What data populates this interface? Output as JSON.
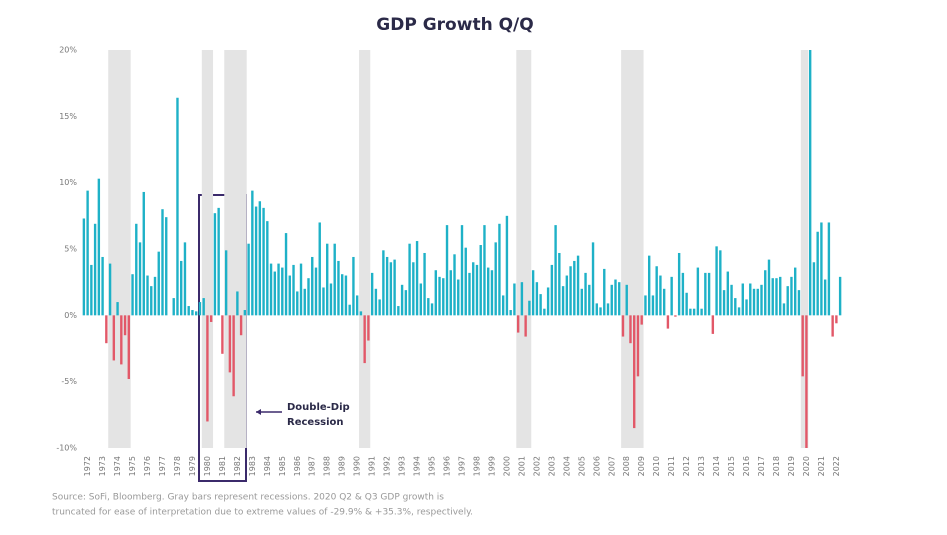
{
  "chart_data": {
    "type": "bar",
    "title": "GDP Growth Q/Q",
    "categories": [
      "1972",
      null,
      null,
      null,
      "1973",
      null,
      null,
      null,
      "1974",
      null,
      null,
      null,
      "1975",
      null,
      null,
      null,
      "1976",
      null,
      null,
      null,
      "1977",
      null,
      null,
      null,
      "1978",
      null,
      null,
      null,
      "1979",
      null,
      null,
      null,
      "1980",
      null,
      null,
      null,
      "1981",
      null,
      null,
      null,
      "1982",
      null,
      null,
      null,
      "1983",
      null,
      null,
      null,
      "1984",
      null,
      null,
      null,
      "1985",
      null,
      null,
      null,
      "1986",
      null,
      null,
      null,
      "1987",
      null,
      null,
      null,
      "1988",
      null,
      null,
      null,
      "1989",
      null,
      null,
      null,
      "1990",
      null,
      null,
      null,
      "1991",
      null,
      null,
      null,
      "1992",
      null,
      null,
      null,
      "1993",
      null,
      null,
      null,
      "1994",
      null,
      null,
      null,
      "1995",
      null,
      null,
      null,
      "1996",
      null,
      null,
      null,
      "1997",
      null,
      null,
      null,
      "1998",
      null,
      null,
      null,
      "1999",
      null,
      null,
      null,
      "2000",
      null,
      null,
      null,
      "2001",
      null,
      null,
      null,
      "2002",
      null,
      null,
      null,
      "2003",
      null,
      null,
      null,
      "2004",
      null,
      null,
      null,
      "2005",
      null,
      null,
      null,
      "2006",
      null,
      null,
      null,
      "2007",
      null,
      null,
      null,
      "2008",
      null,
      null,
      null,
      "2009",
      null,
      null,
      null,
      "2010",
      null,
      null,
      null,
      "2011",
      null,
      null,
      null,
      "2012",
      null,
      null,
      null,
      "2013",
      null,
      null,
      null,
      "2014",
      null,
      null,
      null,
      "2015",
      null,
      null,
      null,
      "2016",
      null,
      null,
      null,
      "2017",
      null,
      null,
      null,
      "2018",
      null,
      null,
      null,
      "2019",
      null,
      null,
      null,
      "2020",
      null,
      null,
      null,
      "2021",
      null,
      null,
      null,
      "2022",
      null,
      null
    ],
    "values": [
      7.3,
      9.4,
      3.8,
      6.9,
      10.3,
      4.4,
      -2.1,
      3.9,
      -3.4,
      1.0,
      -3.7,
      -1.5,
      -4.8,
      3.1,
      6.9,
      5.5,
      9.3,
      3.0,
      2.2,
      2.9,
      4.8,
      8.0,
      7.4,
      0.0,
      1.3,
      16.4,
      4.1,
      5.5,
      0.7,
      0.4,
      0.3,
      1.0,
      1.3,
      -8.0,
      -0.5,
      7.7,
      8.1,
      -2.9,
      4.9,
      -4.3,
      -6.1,
      1.8,
      -1.5,
      0.4,
      5.4,
      9.4,
      8.2,
      8.6,
      8.1,
      7.1,
      3.9,
      3.3,
      3.9,
      3.6,
      6.2,
      3.0,
      3.8,
      1.8,
      3.9,
      2.0,
      2.8,
      4.4,
      3.6,
      7.0,
      2.1,
      5.4,
      2.4,
      5.4,
      4.1,
      3.1,
      3.0,
      0.8,
      4.4,
      1.5,
      0.3,
      -3.6,
      -1.9,
      3.2,
      2.0,
      1.2,
      4.9,
      4.4,
      4.0,
      4.2,
      0.7,
      2.3,
      1.9,
      5.4,
      4.0,
      5.6,
      2.4,
      4.7,
      1.3,
      0.9,
      3.4,
      2.9,
      2.8,
      6.8,
      3.4,
      4.6,
      2.7,
      6.8,
      5.1,
      3.2,
      4.0,
      3.8,
      5.3,
      6.8,
      3.6,
      3.4,
      5.5,
      6.9,
      1.5,
      7.5,
      0.4,
      2.4,
      -1.3,
      2.5,
      -1.6,
      1.1,
      3.4,
      2.5,
      1.6,
      0.5,
      2.1,
      3.8,
      6.8,
      4.7,
      2.2,
      3.0,
      3.7,
      4.1,
      4.5,
      2.0,
      3.2,
      2.3,
      5.5,
      0.9,
      0.6,
      3.5,
      0.9,
      2.3,
      2.7,
      2.5,
      -1.6,
      2.3,
      -2.1,
      -8.5,
      -4.6,
      -0.7,
      1.5,
      4.5,
      1.5,
      3.7,
      3.0,
      2.0,
      -1.0,
      2.9,
      -0.1,
      4.7,
      3.2,
      1.7,
      0.5,
      0.5,
      3.6,
      0.5,
      3.2,
      3.2,
      -1.4,
      5.2,
      4.9,
      1.9,
      3.3,
      2.3,
      1.3,
      0.6,
      2.4,
      1.2,
      2.4,
      2.0,
      2.0,
      2.3,
      3.4,
      4.2,
      2.8,
      2.8,
      2.9,
      0.9,
      2.2,
      2.9,
      3.6,
      1.9,
      -4.6,
      -10,
      20,
      4.0,
      6.3,
      7.0,
      2.7,
      7.0,
      -1.6,
      -0.6,
      2.9
    ],
    "color": "#1eb1c7",
    "negative_color": "#e25868",
    "recession_color": "#e4e4e4",
    "recessions": [
      {
        "start": 7,
        "end": 12
      },
      {
        "start": 32,
        "end": 34
      },
      {
        "start": 38,
        "end": 43
      },
      {
        "start": 74,
        "end": 76
      },
      {
        "start": 116,
        "end": 119
      },
      {
        "start": 144,
        "end": 149
      },
      {
        "start": 192,
        "end": 193
      }
    ],
    "ylim": [
      -10,
      20
    ],
    "yticks": [
      {
        "value": -10,
        "label": "-10%"
      },
      {
        "value": -5,
        "label": "-5%"
      },
      {
        "value": 0,
        "label": "0%"
      },
      {
        "value": 5,
        "label": "5%"
      },
      {
        "value": 10,
        "label": "10%"
      },
      {
        "value": 15,
        "label": "15%"
      },
      {
        "value": 20,
        "label": "20%"
      }
    ],
    "annotation": [
      "Double-Dip",
      "Recession"
    ],
    "source": [
      "Source: SoFi, Bloomberg. Gray bars represent recessions. 2020 Q2 & Q3 GDP growth is",
      "truncated for ease of interpretation due to extreme values of -29.9% & +35.3%, respectively."
    ]
  }
}
